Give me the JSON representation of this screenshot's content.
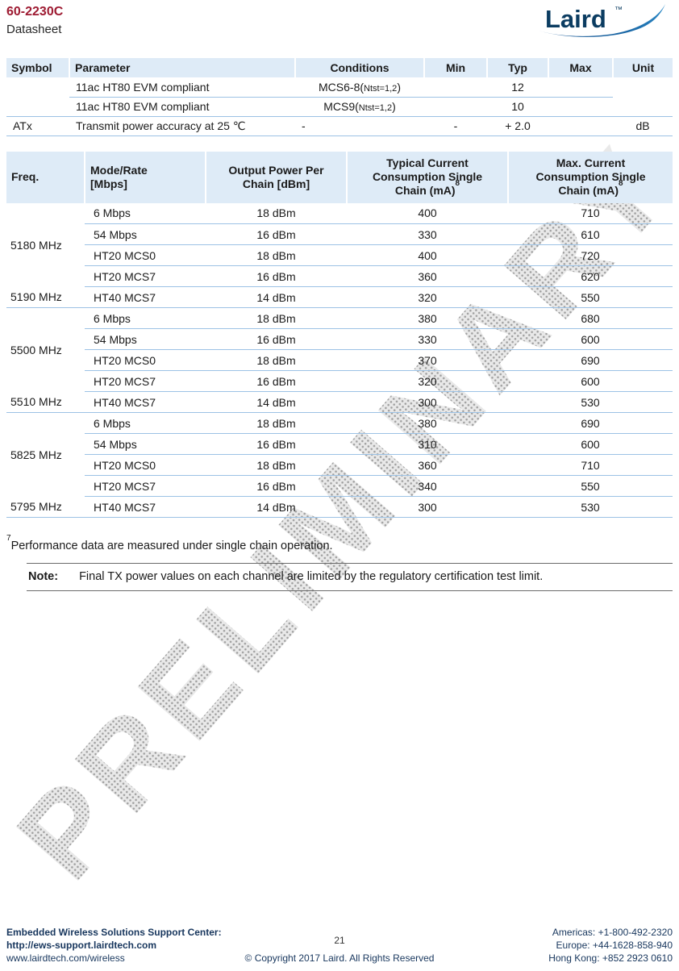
{
  "page": {
    "title": "60-2230C",
    "subtitle": "Datasheet",
    "watermark": "PRELIMINARY"
  },
  "logo": {
    "text": "Laird",
    "tm": "™"
  },
  "spec_table": {
    "headers": [
      "Symbol",
      "Parameter",
      "Conditions",
      "Min",
      "Typ",
      "Max",
      "Unit"
    ],
    "rows": [
      {
        "symbol": "",
        "parameter": "11ac HT80 EVM compliant",
        "cond_main": "MCS6-8(",
        "cond_sub": "Ntst=1,2",
        "cond_end": ")",
        "min": "",
        "typ": "12",
        "max": "",
        "unit": ""
      },
      {
        "symbol": "",
        "parameter": "11ac HT80 EVM compliant",
        "cond_main": "MCS9(",
        "cond_sub": "Ntst=1,2",
        "cond_end": ")",
        "min": "",
        "typ": "10",
        "max": "",
        "unit": ""
      },
      {
        "symbol": "ATx",
        "parameter": "Transmit power accuracy at 25 ℃",
        "cond_main": "-",
        "cond_sub": "",
        "cond_end": "",
        "min": "-",
        "typ": "+ 2.0",
        "max": "",
        "unit": "dB"
      }
    ]
  },
  "power_table": {
    "headers": [
      {
        "lines": [
          "Freq."
        ],
        "sup": "",
        "align": "left"
      },
      {
        "lines": [
          "Mode/Rate",
          "[Mbps]"
        ],
        "sup": "",
        "align": "left"
      },
      {
        "lines": [
          "Output Power Per",
          "Chain [dBm]"
        ],
        "sup": "",
        "align": "center"
      },
      {
        "lines": [
          "Typical Current",
          "Consumption Single",
          "Chain (mA)"
        ],
        "sup": "8",
        "align": "center"
      },
      {
        "lines": [
          "Max. Current",
          "Consumption Single",
          "Chain (mA)"
        ],
        "sup": "8",
        "align": "center"
      }
    ],
    "groups": [
      {
        "freq_main": "5180 MHz",
        "freq_last": "5190 MHz",
        "rows": [
          {
            "mode": "6 Mbps",
            "power": "18 dBm",
            "typical": "400",
            "max": "710"
          },
          {
            "mode": "54 Mbps",
            "power": "16 dBm",
            "typical": "330",
            "max": "610"
          },
          {
            "mode": "HT20 MCS0",
            "power": "18 dBm",
            "typical": "400",
            "max": "720"
          },
          {
            "mode": "HT20 MCS7",
            "power": "16 dBm",
            "typical": "360",
            "max": "620"
          },
          {
            "mode": "HT40 MCS7",
            "power": "14 dBm",
            "typical": "320",
            "max": "550"
          }
        ]
      },
      {
        "freq_main": "5500 MHz",
        "freq_last": "5510 MHz",
        "rows": [
          {
            "mode": "6 Mbps",
            "power": "18 dBm",
            "typical": "380",
            "max": "680"
          },
          {
            "mode": "54 Mbps",
            "power": "16 dBm",
            "typical": "330",
            "max": "600"
          },
          {
            "mode": "HT20 MCS0",
            "power": "18 dBm",
            "typical": "370",
            "max": "690"
          },
          {
            "mode": "HT20 MCS7",
            "power": "16 dBm",
            "typical": "320",
            "max": "600"
          },
          {
            "mode": "HT40 MCS7",
            "power": "14 dBm",
            "typical": "300",
            "max": "530"
          }
        ]
      },
      {
        "freq_main": "5825 MHz",
        "freq_last": "5795 MHz",
        "rows": [
          {
            "mode": "6 Mbps",
            "power": "18 dBm",
            "typical": "380",
            "max": "690"
          },
          {
            "mode": "54 Mbps",
            "power": "16 dBm",
            "typical": "310",
            "max": "600"
          },
          {
            "mode": "HT20 MCS0",
            "power": "18 dBm",
            "typical": "360",
            "max": "710"
          },
          {
            "mode": "HT20 MCS7",
            "power": "16 dBm",
            "typical": "340",
            "max": "550"
          },
          {
            "mode": "HT40 MCS7",
            "power": "14 dBm",
            "typical": "300",
            "max": "530"
          }
        ]
      }
    ]
  },
  "footnote": {
    "sup": "7",
    "text": "Performance data are measured under single chain operation."
  },
  "note": {
    "label": "Note:",
    "text": "Final TX power values on each channel are limited by the regulatory certification test limit."
  },
  "footer": {
    "left": [
      "Embedded Wireless Solutions Support Center:",
      "http://ews-support.lairdtech.com",
      "www.lairdtech.com/wireless"
    ],
    "center_page": "21",
    "center_copyright": "© Copyright 2017 Laird. All Rights Reserved",
    "right": [
      "Americas: +1-800-492-2320",
      "Europe: +44-1628-858-940",
      "Hong Kong: +852 2923 0610"
    ]
  }
}
